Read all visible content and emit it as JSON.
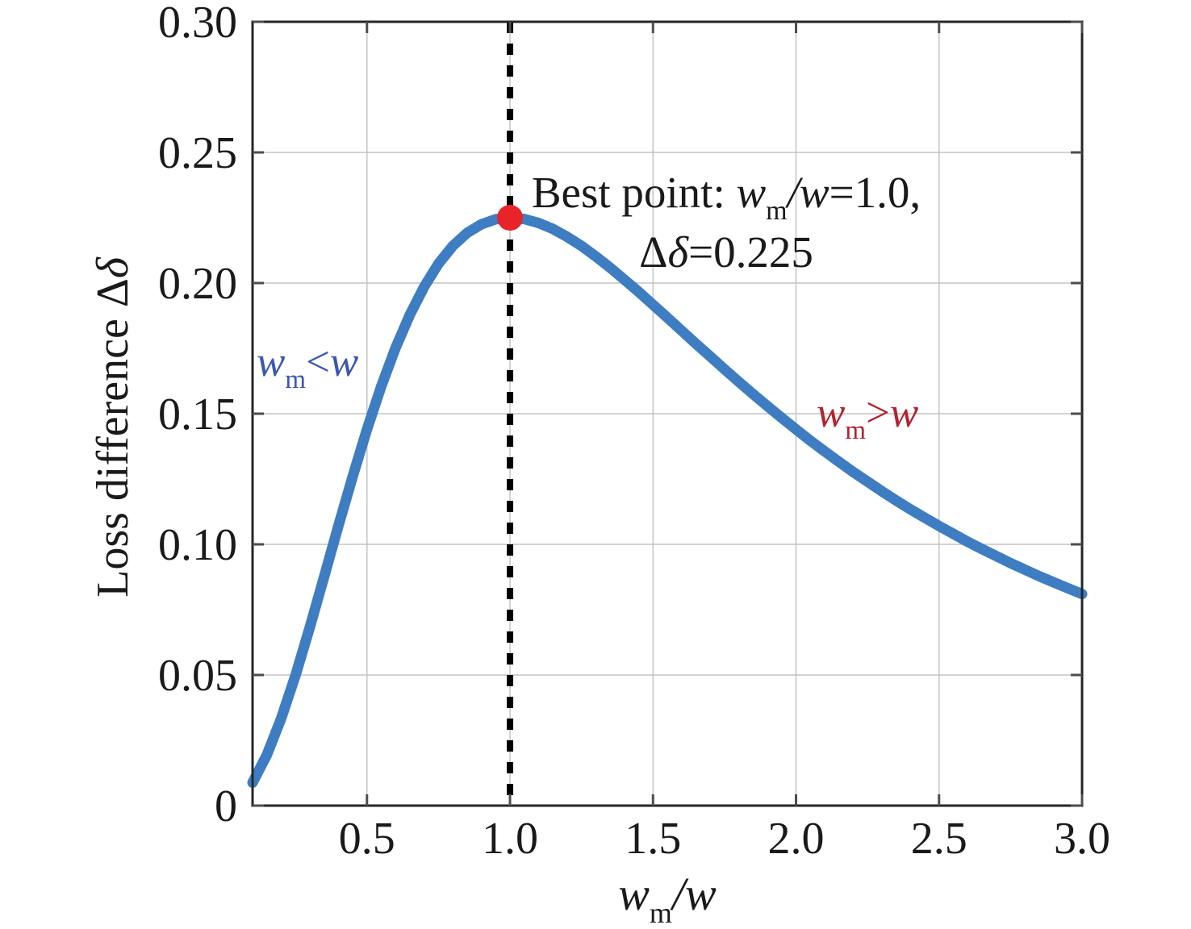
{
  "chart_data": {
    "type": "line",
    "title": "",
    "xlabel_tokens": [
      {
        "t": "w",
        "i": true
      },
      {
        "t": "m",
        "s": true
      },
      {
        "t": "/w",
        "i": true
      }
    ],
    "ylabel_tokens": [
      {
        "t": "Loss difference Δ"
      },
      {
        "t": "δ",
        "i": true
      }
    ],
    "xlim": [
      0.1,
      3.0
    ],
    "ylim": [
      0.0,
      0.3
    ],
    "grid": true,
    "grid_color": "#c4c4c4",
    "legend": "none",
    "x_ticks": [
      {
        "v": 0.5,
        "label": "0.5"
      },
      {
        "v": 1.0,
        "label": "1.0"
      },
      {
        "v": 1.5,
        "label": "1.5"
      },
      {
        "v": 2.0,
        "label": "2.0"
      },
      {
        "v": 2.5,
        "label": "2.5"
      },
      {
        "v": 3.0,
        "label": "3.0"
      }
    ],
    "y_ticks": [
      {
        "v": 0.0,
        "label": "0"
      },
      {
        "v": 0.05,
        "label": "0.05"
      },
      {
        "v": 0.1,
        "label": "0.10"
      },
      {
        "v": 0.15,
        "label": "0.15"
      },
      {
        "v": 0.2,
        "label": "0.20"
      },
      {
        "v": 0.25,
        "label": "0.25"
      },
      {
        "v": 0.3,
        "label": "0.30"
      }
    ],
    "series": [
      {
        "name": "loss-difference-curve",
        "color": "#3e7dc2",
        "stroke_width": 13,
        "x": [
          0.1,
          0.15,
          0.2,
          0.25,
          0.3,
          0.35,
          0.4,
          0.45,
          0.5,
          0.55,
          0.6,
          0.65,
          0.7,
          0.75,
          0.8,
          0.85,
          0.9,
          0.95,
          1.0,
          1.05,
          1.1,
          1.15,
          1.2,
          1.25,
          1.3,
          1.35,
          1.4,
          1.45,
          1.5,
          1.55,
          1.6,
          1.65,
          1.7,
          1.75,
          1.8,
          1.85,
          1.9,
          1.95,
          2.0,
          2.05,
          2.1,
          2.15,
          2.2,
          2.25,
          2.3,
          2.35,
          2.4,
          2.45,
          2.5,
          2.55,
          2.6,
          2.65,
          2.7,
          2.75,
          2.8,
          2.85,
          2.9,
          2.95,
          3.0
        ],
        "y": [
          0.0088,
          0.0194,
          0.0333,
          0.0498,
          0.0682,
          0.0875,
          0.107,
          0.126,
          0.144,
          0.1605,
          0.1752,
          0.1879,
          0.1986,
          0.2074,
          0.2142,
          0.2192,
          0.2225,
          0.2244,
          0.225,
          0.2245,
          0.223,
          0.2207,
          0.2177,
          0.2142,
          0.2102,
          0.2059,
          0.2013,
          0.1966,
          0.1917,
          0.1868,
          0.1818,
          0.1768,
          0.1719,
          0.167,
          0.1622,
          0.1575,
          0.1529,
          0.1484,
          0.144,
          0.1397,
          0.1356,
          0.1316,
          0.1277,
          0.124,
          0.1203,
          0.1168,
          0.1134,
          0.1102,
          0.107,
          0.104,
          0.101,
          0.0982,
          0.0955,
          0.0928,
          0.0903,
          0.0878,
          0.0855,
          0.0832,
          0.081
        ]
      }
    ],
    "best_point_marker": {
      "x": 1.0,
      "y": 0.225,
      "radius": 16,
      "color": "#e82329"
    },
    "vline": {
      "x": 1.0,
      "color": "#000000",
      "width": 8,
      "dash": "14 13"
    },
    "annotations": {
      "best_point": {
        "color": "#1a1a1a",
        "lines": [
          {
            "tokens": [
              {
                "t": "Best point: "
              },
              {
                "t": "w",
                "i": true
              },
              {
                "t": "m",
                "s": true
              },
              {
                "t": "/w",
                "i": true
              },
              {
                "t": "=1.0,"
              }
            ]
          },
          {
            "tokens": [
              {
                "t": "Δ"
              },
              {
                "t": "δ",
                "i": true
              },
              {
                "t": "=0.225"
              }
            ]
          }
        ]
      },
      "region_left": {
        "color": "#3a57b2",
        "tokens": [
          {
            "t": "w",
            "i": true
          },
          {
            "t": "m",
            "s": true
          },
          {
            "t": "<"
          },
          {
            "t": "w",
            "i": true
          }
        ]
      },
      "region_right": {
        "color": "#b32330",
        "tokens": [
          {
            "t": "w",
            "i": true
          },
          {
            "t": "m",
            "s": true
          },
          {
            "t": ">"
          },
          {
            "t": "w",
            "i": true
          }
        ]
      }
    }
  },
  "colors": {
    "background": "#ffffff",
    "text": "#1a1a1a",
    "spine": "#262626",
    "tick": "#4d4d4d",
    "grid": "#c4c4c4",
    "curve_blue": "#3e7dc2",
    "marker_red": "#e82329",
    "label_red": "#b32330",
    "label_blue": "#3a57b2",
    "dash_black": "#000000"
  }
}
